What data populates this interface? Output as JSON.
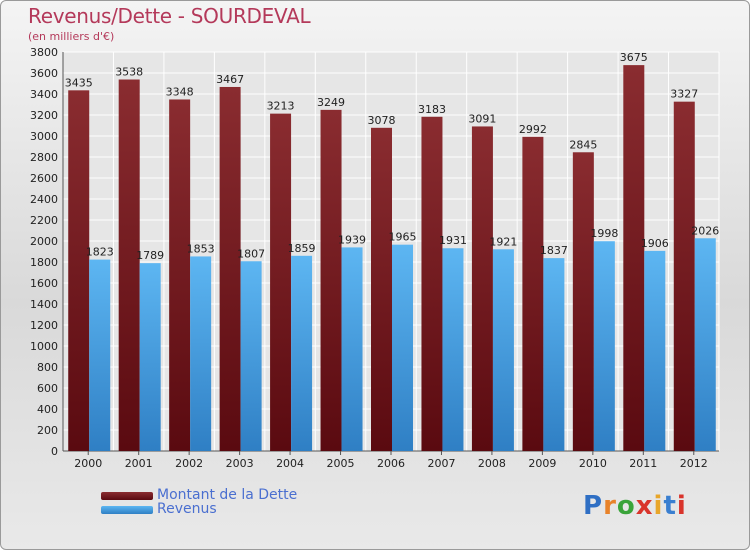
{
  "chart_data": {
    "type": "bar",
    "title": "Revenus/Dette - SOURDEVAL",
    "subtitle": "(en milliers d'€)",
    "categories": [
      "2000",
      "2001",
      "2002",
      "2003",
      "2004",
      "2005",
      "2006",
      "2007",
      "2008",
      "2009",
      "2010",
      "2011",
      "2012"
    ],
    "series": [
      {
        "name": "Montant de la Dette",
        "values": [
          3435,
          3538,
          3348,
          3467,
          3213,
          3249,
          3078,
          3183,
          3091,
          2992,
          2845,
          3675,
          3327
        ]
      },
      {
        "name": "Revenus",
        "values": [
          1823,
          1789,
          1853,
          1807,
          1859,
          1939,
          1965,
          1931,
          1921,
          1837,
          1998,
          1906,
          2026
        ]
      }
    ],
    "ylim": [
      0,
      3800
    ],
    "yticks": [
      0,
      200,
      400,
      600,
      800,
      1000,
      1200,
      1400,
      1600,
      1800,
      2000,
      2200,
      2400,
      2600,
      2800,
      3000,
      3200,
      3400,
      3600,
      3800
    ],
    "grid": true,
    "legend_position": "bottom-left"
  },
  "colors": {
    "dette_top": "#8a2c30",
    "dette_bottom": "#5a0a10",
    "revenus_top": "#5db6f2",
    "revenus_bottom": "#2f7fc4",
    "title": "#b4395a",
    "legend_text": "#4a6fd0"
  },
  "logo": {
    "text": "Proxiti"
  }
}
